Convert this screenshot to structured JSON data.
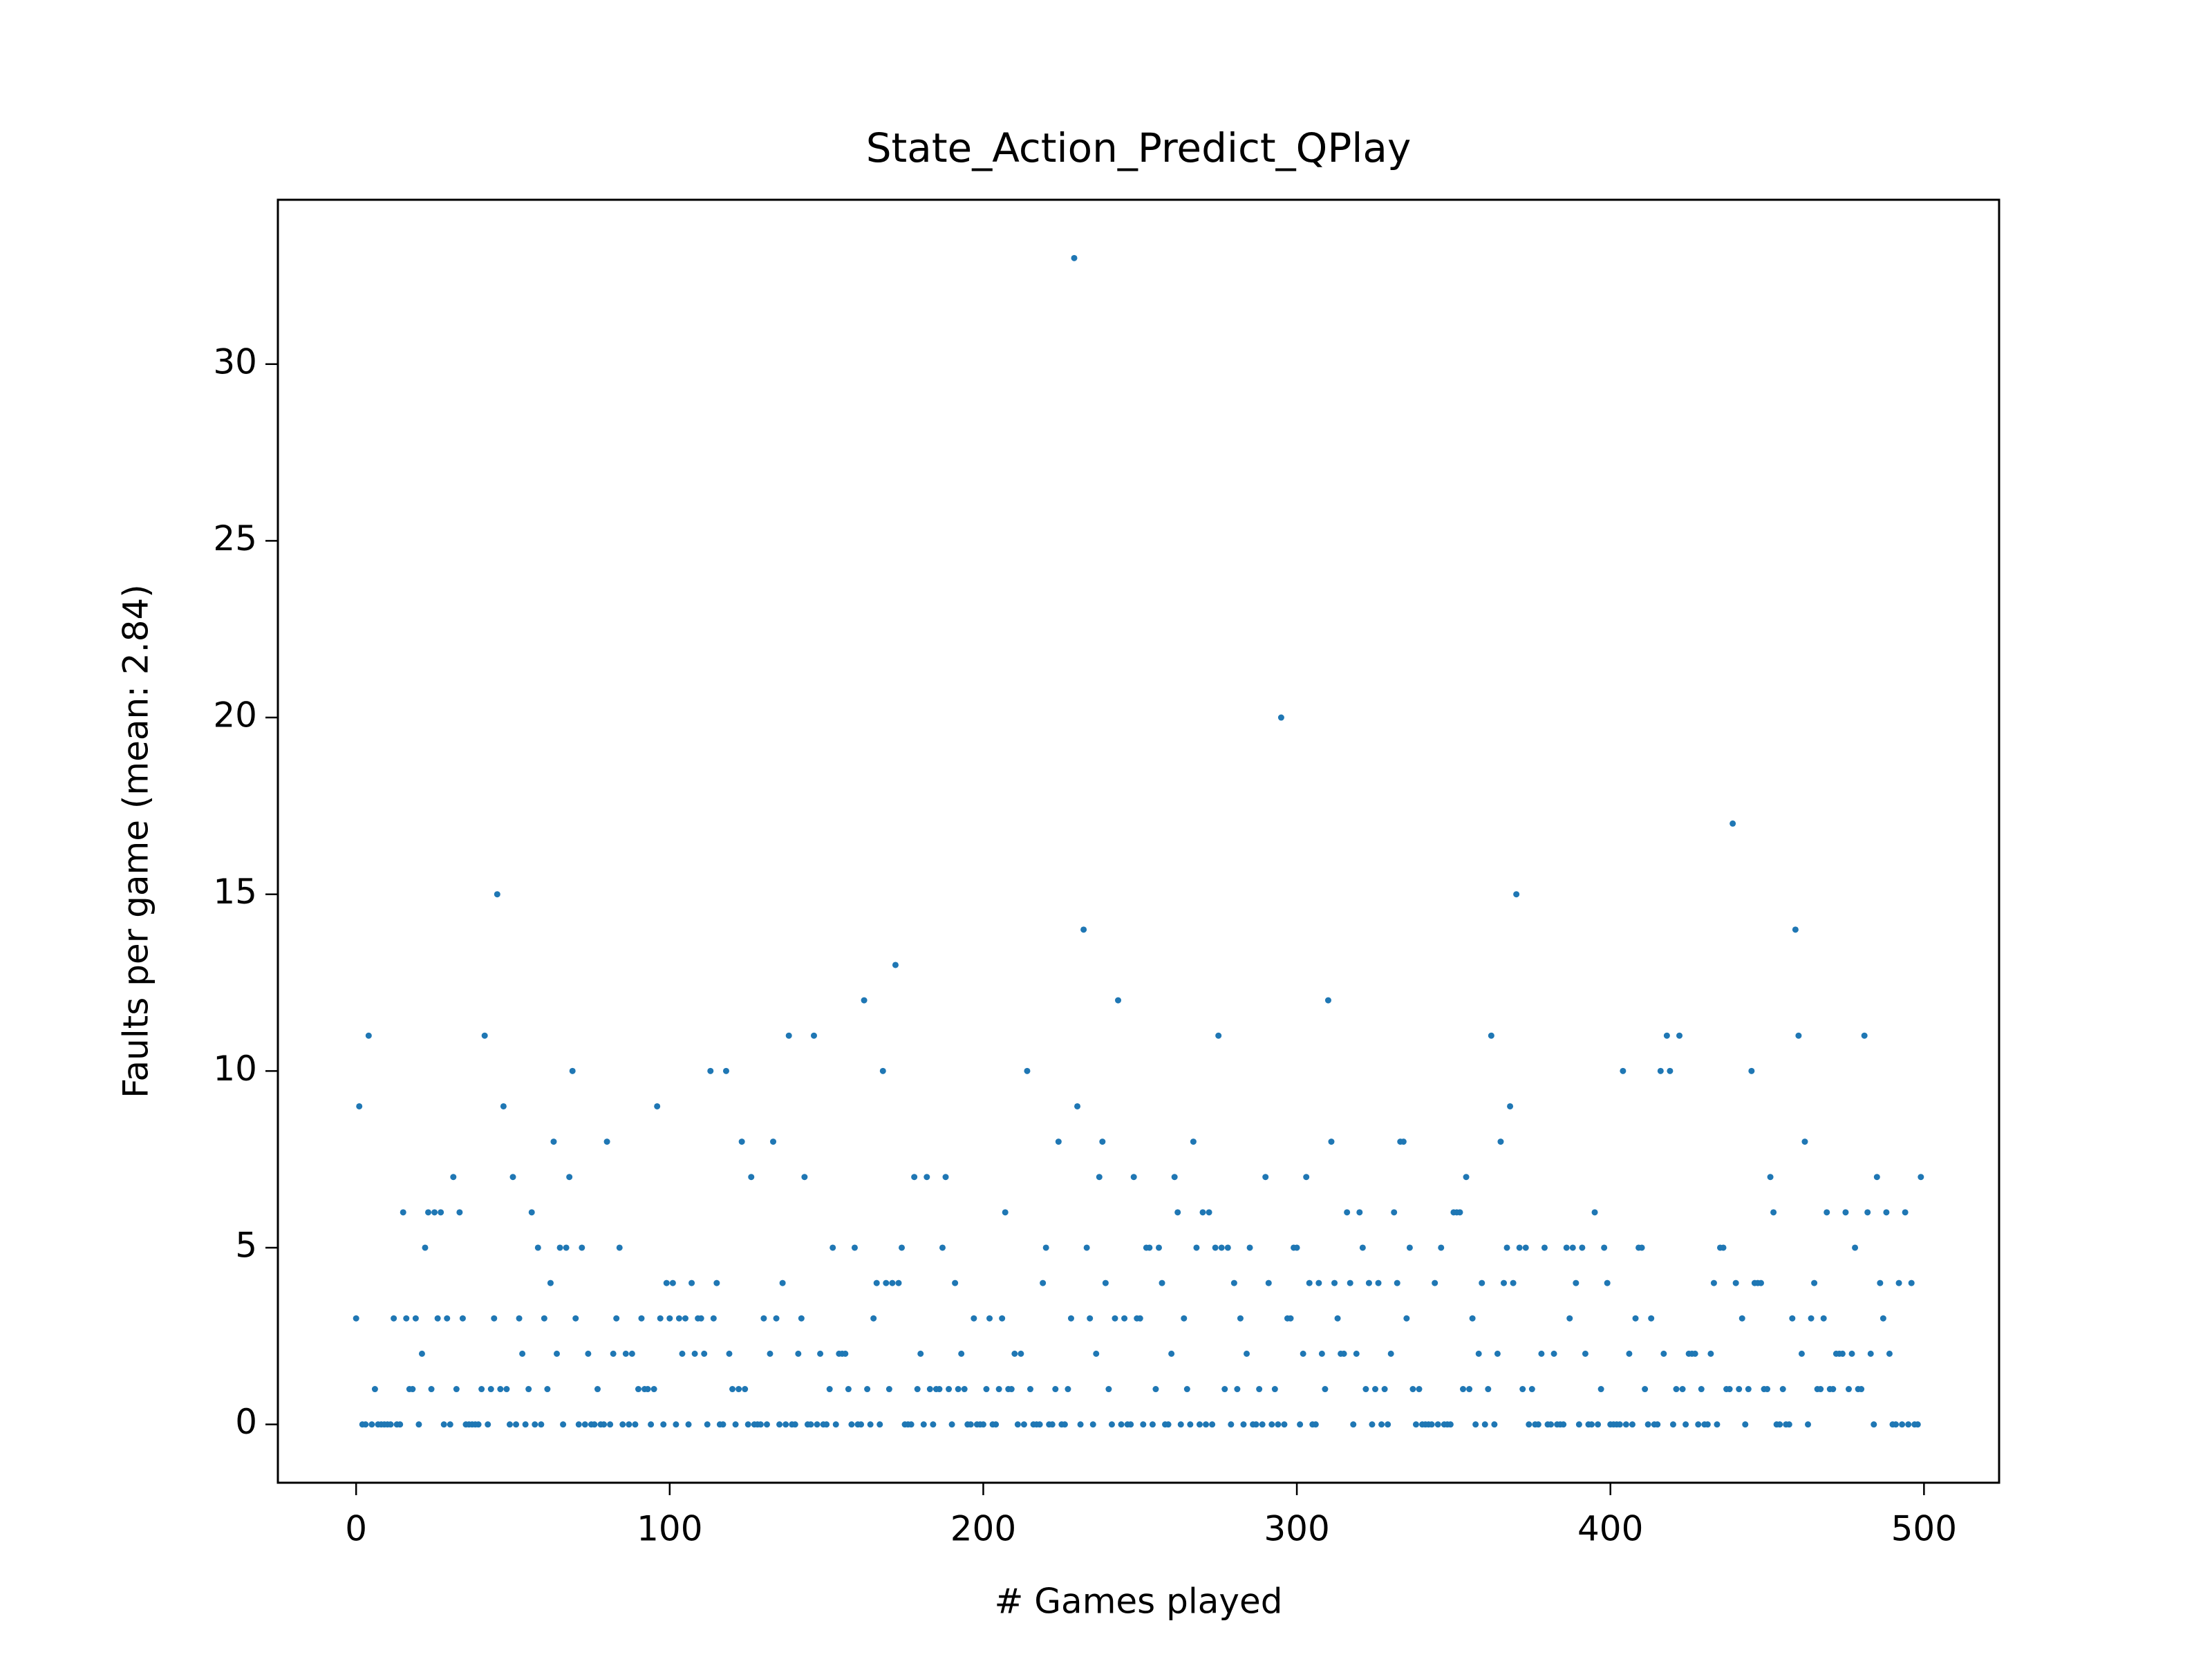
{
  "chart_data": {
    "type": "scatter",
    "title": "State_Action_Predict_QPlay",
    "x_label": "# Games played",
    "y_label": "Faults per game (mean: 2.84)",
    "xlim": [
      -24.95,
      523.95
    ],
    "ylim": [
      -1.65,
      34.65
    ],
    "xticks": [
      0,
      100,
      200,
      300,
      400,
      500
    ],
    "yticks": [
      0,
      5,
      10,
      15,
      20,
      25,
      30
    ],
    "series": [
      {
        "color": "#1f77b4",
        "x": [
          0,
          1,
          2,
          3,
          4,
          5,
          6,
          7,
          8,
          9,
          10,
          11,
          12,
          13,
          14,
          15,
          16,
          17,
          18,
          19,
          20,
          21,
          22,
          23,
          24,
          25,
          26,
          27,
          28,
          29,
          30,
          31,
          32,
          33,
          34,
          35,
          36,
          37,
          38,
          39,
          40,
          41,
          42,
          43,
          44,
          45,
          46,
          47,
          48,
          49,
          50,
          51,
          52,
          53,
          54,
          55,
          56,
          57,
          58,
          59,
          60,
          61,
          62,
          63,
          64,
          65,
          66,
          67,
          68,
          69,
          70,
          71,
          72,
          73,
          74,
          75,
          76,
          77,
          78,
          79,
          80,
          81,
          82,
          83,
          84,
          85,
          86,
          87,
          88,
          89,
          90,
          91,
          92,
          93,
          94,
          95,
          96,
          97,
          98,
          99,
          100,
          101,
          102,
          103,
          104,
          105,
          106,
          107,
          108,
          109,
          110,
          111,
          112,
          113,
          114,
          115,
          116,
          117,
          118,
          119,
          120,
          121,
          122,
          123,
          124,
          125,
          126,
          127,
          128,
          129,
          130,
          131,
          132,
          133,
          134,
          135,
          136,
          137,
          138,
          139,
          140,
          141,
          142,
          143,
          144,
          145,
          146,
          147,
          148,
          149,
          150,
          151,
          152,
          153,
          154,
          155,
          156,
          157,
          158,
          159,
          160,
          161,
          162,
          163,
          164,
          165,
          166,
          167,
          168,
          169,
          170,
          171,
          172,
          173,
          174,
          175,
          176,
          177,
          178,
          179,
          180,
          181,
          182,
          183,
          184,
          185,
          186,
          187,
          188,
          189,
          190,
          191,
          192,
          193,
          194,
          195,
          196,
          197,
          198,
          199,
          200,
          201,
          202,
          203,
          204,
          205,
          206,
          207,
          208,
          209,
          210,
          211,
          212,
          213,
          214,
          215,
          216,
          217,
          218,
          219,
          220,
          221,
          222,
          223,
          224,
          225,
          226,
          227,
          228,
          229,
          230,
          231,
          232,
          233,
          234,
          235,
          236,
          237,
          238,
          239,
          240,
          241,
          242,
          243,
          244,
          245,
          246,
          247,
          248,
          249,
          250,
          251,
          252,
          253,
          254,
          255,
          256,
          257,
          258,
          259,
          260,
          261,
          262,
          263,
          264,
          265,
          266,
          267,
          268,
          269,
          270,
          271,
          272,
          273,
          274,
          275,
          276,
          277,
          278,
          279,
          280,
          281,
          282,
          283,
          284,
          285,
          286,
          287,
          288,
          289,
          290,
          291,
          292,
          293,
          294,
          295,
          296,
          297,
          298,
          299,
          300,
          301,
          302,
          303,
          304,
          305,
          306,
          307,
          308,
          309,
          310,
          311,
          312,
          313,
          314,
          315,
          316,
          317,
          318,
          319,
          320,
          321,
          322,
          323,
          324,
          325,
          326,
          327,
          328,
          329,
          330,
          331,
          332,
          333,
          334,
          335,
          336,
          337,
          338,
          339,
          340,
          341,
          342,
          343,
          344,
          345,
          346,
          347,
          348,
          349,
          350,
          351,
          352,
          353,
          354,
          355,
          356,
          357,
          358,
          359,
          360,
          361,
          362,
          363,
          364,
          365,
          366,
          367,
          368,
          369,
          370,
          371,
          372,
          373,
          374,
          375,
          376,
          377,
          378,
          379,
          380,
          381,
          382,
          383,
          384,
          385,
          386,
          387,
          388,
          389,
          390,
          391,
          392,
          393,
          394,
          395,
          396,
          397,
          398,
          399,
          400,
          401,
          402,
          403,
          404,
          405,
          406,
          407,
          408,
          409,
          410,
          411,
          412,
          413,
          414,
          415,
          416,
          417,
          418,
          419,
          420,
          421,
          422,
          423,
          424,
          425,
          426,
          427,
          428,
          429,
          430,
          431,
          432,
          433,
          434,
          435,
          436,
          437,
          438,
          439,
          440,
          441,
          442,
          443,
          444,
          445,
          446,
          447,
          448,
          449,
          450,
          451,
          452,
          453,
          454,
          455,
          456,
          457,
          458,
          459,
          460,
          461,
          462,
          463,
          464,
          465,
          466,
          467,
          468,
          469,
          470,
          471,
          472,
          473,
          474,
          475,
          476,
          477,
          478,
          479,
          480,
          481,
          482,
          483,
          484,
          485,
          486,
          487,
          488,
          489,
          490,
          491,
          492,
          493,
          494,
          495,
          496,
          497,
          498,
          499
        ],
        "values": [
          3,
          9,
          0,
          0,
          11,
          0,
          1,
          0,
          0,
          0,
          0,
          0,
          3,
          0,
          0,
          6,
          3,
          1,
          1,
          3,
          0,
          2,
          5,
          6,
          1,
          6,
          3,
          6,
          0,
          3,
          0,
          7,
          1,
          6,
          3,
          0,
          0,
          0,
          0,
          0,
          1,
          11,
          0,
          1,
          3,
          15,
          1,
          9,
          1,
          0,
          7,
          0,
          3,
          2,
          0,
          1,
          6,
          0,
          5,
          0,
          3,
          1,
          4,
          8,
          2,
          5,
          0,
          5,
          7,
          10,
          3,
          0,
          5,
          0,
          2,
          0,
          0,
          1,
          0,
          0,
          8,
          0,
          2,
          3,
          5,
          0,
          2,
          0,
          2,
          0,
          1,
          3,
          1,
          1,
          0,
          1,
          9,
          3,
          0,
          4,
          3,
          4,
          0,
          3,
          2,
          3,
          0,
          4,
          2,
          3,
          3,
          2,
          0,
          10,
          3,
          4,
          0,
          0,
          10,
          2,
          1,
          0,
          1,
          8,
          1,
          0,
          7,
          0,
          0,
          0,
          3,
          0,
          2,
          8,
          3,
          0,
          4,
          0,
          11,
          0,
          0,
          2,
          3,
          7,
          0,
          0,
          11,
          0,
          2,
          0,
          0,
          1,
          5,
          0,
          2,
          2,
          2,
          1,
          0,
          5,
          0,
          0,
          12,
          1,
          0,
          3,
          4,
          0,
          10,
          4,
          1,
          4,
          13,
          4,
          5,
          0,
          0,
          0,
          7,
          1,
          2,
          0,
          7,
          1,
          0,
          1,
          1,
          5,
          7,
          1,
          0,
          4,
          1,
          2,
          1,
          0,
          0,
          3,
          0,
          0,
          0,
          1,
          3,
          0,
          0,
          1,
          3,
          6,
          1,
          1,
          2,
          0,
          2,
          0,
          10,
          1,
          0,
          0,
          0,
          4,
          5,
          0,
          0,
          1,
          8,
          0,
          0,
          1,
          3,
          33,
          9,
          0,
          14,
          5,
          3,
          0,
          2,
          7,
          8,
          4,
          1,
          0,
          3,
          12,
          0,
          3,
          0,
          0,
          7,
          3,
          3,
          0,
          5,
          5,
          0,
          1,
          5,
          4,
          0,
          0,
          2,
          7,
          6,
          0,
          3,
          1,
          0,
          8,
          5,
          0,
          6,
          0,
          6,
          0,
          5,
          11,
          5,
          1,
          5,
          0,
          4,
          1,
          3,
          0,
          2,
          5,
          0,
          0,
          1,
          0,
          7,
          4,
          0,
          1,
          0,
          20,
          0,
          3,
          3,
          5,
          5,
          0,
          2,
          7,
          4,
          0,
          0,
          4,
          2,
          1,
          12,
          8,
          4,
          3,
          2,
          2,
          6,
          4,
          0,
          2,
          6,
          5,
          1,
          4,
          0,
          1,
          4,
          0,
          1,
          0,
          2,
          6,
          4,
          8,
          8,
          3,
          5,
          1,
          0,
          1,
          0,
          0,
          0,
          0,
          4,
          0,
          5,
          0,
          0,
          0,
          6,
          6,
          6,
          1,
          7,
          1,
          3,
          0,
          2,
          4,
          0,
          1,
          11,
          0,
          2,
          8,
          4,
          5,
          9,
          4,
          15,
          5,
          1,
          5,
          0,
          1,
          0,
          0,
          2,
          5,
          0,
          0,
          2,
          0,
          0,
          0,
          5,
          3,
          5,
          4,
          0,
          5,
          2,
          0,
          0,
          6,
          0,
          1,
          5,
          4,
          0,
          0,
          0,
          0,
          10,
          0,
          2,
          0,
          3,
          5,
          5,
          1,
          0,
          3,
          0,
          0,
          10,
          2,
          11,
          10,
          0,
          1,
          11,
          1,
          0,
          2,
          2,
          2,
          0,
          1,
          0,
          0,
          2,
          4,
          0,
          5,
          5,
          1,
          1,
          17,
          4,
          1,
          3,
          0,
          1,
          10,
          4,
          4,
          4,
          1,
          1,
          7,
          6,
          0,
          0,
          1,
          0,
          0,
          3,
          14,
          11,
          2,
          8,
          0,
          3,
          4,
          1,
          1,
          3,
          6,
          1,
          1,
          2,
          2,
          2,
          6,
          1,
          2,
          5,
          1,
          1,
          11,
          6,
          2,
          0,
          7,
          4,
          3,
          6,
          2,
          0,
          0,
          4,
          0,
          6,
          0,
          4,
          0,
          0,
          7
        ]
      }
    ]
  }
}
